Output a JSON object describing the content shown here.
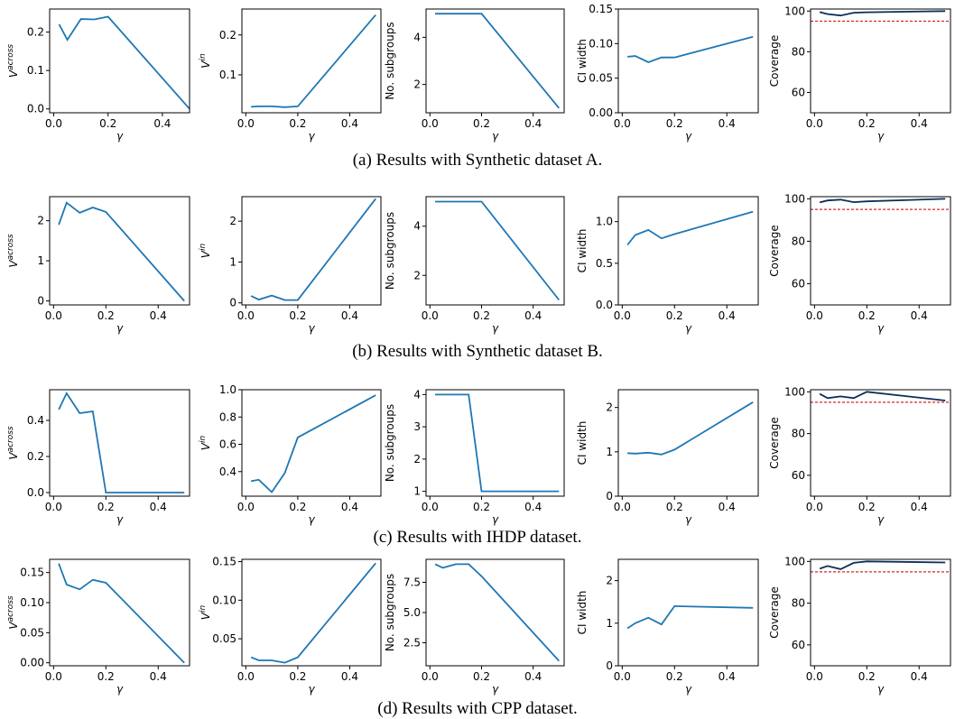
{
  "colors": {
    "series": "#1f77b4",
    "coverage_line": "#0c2e59",
    "reference": "#d62728"
  },
  "captions": [
    "(a) Results with Synthetic dataset A.",
    "(b) Results with Synthetic dataset B.",
    "(c) Results with IHDP dataset.",
    "(d) Results with CPP dataset."
  ],
  "chart_data": [
    {
      "type": "line",
      "row": 0,
      "col": 0,
      "xlabel": "γ",
      "ylabel": "V^across",
      "xlim": [
        -0.015,
        0.5
      ],
      "ylim": [
        -0.01,
        0.26
      ],
      "xticks": [
        0.0,
        0.2,
        0.4
      ],
      "xticklabels": [
        "0.0",
        "0.2",
        "0.4"
      ],
      "yticks": [
        0.0,
        0.1,
        0.2
      ],
      "yticklabels": [
        "0.0",
        "0.1",
        "0.2"
      ],
      "x": [
        0.02,
        0.05,
        0.1,
        0.15,
        0.2,
        0.5
      ],
      "y": [
        0.22,
        0.18,
        0.234,
        0.233,
        0.24,
        0.0
      ]
    },
    {
      "type": "line",
      "row": 0,
      "col": 1,
      "xlabel": "γ",
      "ylabel": "V^in",
      "xlim": [
        -0.015,
        0.52
      ],
      "ylim": [
        0.005,
        0.265
      ],
      "xticks": [
        0.0,
        0.2,
        0.4
      ],
      "xticklabels": [
        "0.0",
        "0.2",
        "0.4"
      ],
      "yticks": [
        0.1,
        0.2
      ],
      "yticklabels": [
        "0.1",
        "0.2"
      ],
      "x": [
        0.02,
        0.05,
        0.1,
        0.15,
        0.2,
        0.5
      ],
      "y": [
        0.02,
        0.021,
        0.021,
        0.019,
        0.021,
        0.25
      ]
    },
    {
      "type": "line",
      "row": 0,
      "col": 2,
      "xlabel": "γ",
      "ylabel": "No. subgroups",
      "xlim": [
        -0.015,
        0.52
      ],
      "ylim": [
        0.8,
        5.2
      ],
      "xticks": [
        0.0,
        0.2,
        0.4
      ],
      "xticklabels": [
        "0.0",
        "0.2",
        "0.4"
      ],
      "yticks": [
        2,
        4
      ],
      "yticklabels": [
        "2",
        "4"
      ],
      "x": [
        0.02,
        0.05,
        0.1,
        0.15,
        0.2,
        0.5
      ],
      "y": [
        5,
        5,
        5,
        5,
        5,
        1
      ]
    },
    {
      "type": "line",
      "row": 0,
      "col": 3,
      "xlabel": "γ",
      "ylabel": "CI width",
      "xlim": [
        -0.015,
        0.52
      ],
      "ylim": [
        0.0,
        0.15
      ],
      "xticks": [
        0.0,
        0.2,
        0.4
      ],
      "xticklabels": [
        "0.0",
        "0.2",
        "0.4"
      ],
      "yticks": [
        0.0,
        0.05,
        0.1,
        0.15
      ],
      "yticklabels": [
        "0.00",
        "0.05",
        "0.10",
        "0.15"
      ],
      "x": [
        0.02,
        0.05,
        0.1,
        0.15,
        0.2,
        0.5
      ],
      "y": [
        0.081,
        0.082,
        0.073,
        0.08,
        0.08,
        0.11
      ]
    },
    {
      "type": "line",
      "row": 0,
      "col": 4,
      "xlabel": "γ",
      "ylabel": "Coverage",
      "xlim": [
        -0.015,
        0.52
      ],
      "ylim": [
        50,
        101
      ],
      "xticks": [
        0.0,
        0.2,
        0.4
      ],
      "xticklabels": [
        "0.0",
        "0.2",
        "0.4"
      ],
      "yticks": [
        60,
        80,
        100
      ],
      "yticklabels": [
        "60",
        "80",
        "100"
      ],
      "hline": 95,
      "x": [
        0.02,
        0.05,
        0.1,
        0.15,
        0.2,
        0.5
      ],
      "y": [
        99.5,
        98.5,
        97.8,
        99.2,
        99.4,
        100
      ]
    },
    {
      "type": "line",
      "row": 1,
      "col": 0,
      "xlabel": "γ",
      "ylabel": "V^across",
      "xlim": [
        -0.015,
        0.52
      ],
      "ylim": [
        -0.1,
        2.6
      ],
      "xticks": [
        0.0,
        0.2,
        0.4
      ],
      "xticklabels": [
        "0.0",
        "0.2",
        "0.4"
      ],
      "yticks": [
        0,
        1,
        2
      ],
      "yticklabels": [
        "0",
        "1",
        "2"
      ],
      "x": [
        0.02,
        0.05,
        0.1,
        0.15,
        0.2,
        0.5
      ],
      "y": [
        1.9,
        2.45,
        2.2,
        2.33,
        2.22,
        0.0
      ]
    },
    {
      "type": "line",
      "row": 1,
      "col": 1,
      "xlabel": "γ",
      "ylabel": "V^in",
      "xlim": [
        -0.015,
        0.52
      ],
      "ylim": [
        -0.05,
        2.6
      ],
      "xticks": [
        0.0,
        0.2,
        0.4
      ],
      "xticklabels": [
        "0.0",
        "0.2",
        "0.4"
      ],
      "yticks": [
        0,
        1,
        2
      ],
      "yticklabels": [
        "0",
        "1",
        "2"
      ],
      "x": [
        0.02,
        0.05,
        0.1,
        0.15,
        0.2,
        0.5
      ],
      "y": [
        0.17,
        0.08,
        0.18,
        0.07,
        0.07,
        2.55
      ]
    },
    {
      "type": "line",
      "row": 1,
      "col": 2,
      "xlabel": "γ",
      "ylabel": "No. subgroups",
      "xlim": [
        -0.015,
        0.52
      ],
      "ylim": [
        0.8,
        5.2
      ],
      "xticks": [
        0.0,
        0.2,
        0.4
      ],
      "xticklabels": [
        "0.0",
        "0.2",
        "0.4"
      ],
      "yticks": [
        2,
        4
      ],
      "yticklabels": [
        "2",
        "4"
      ],
      "x": [
        0.02,
        0.05,
        0.1,
        0.15,
        0.2,
        0.5
      ],
      "y": [
        5,
        5,
        5,
        5,
        5,
        1
      ]
    },
    {
      "type": "line",
      "row": 1,
      "col": 3,
      "xlabel": "γ",
      "ylabel": "CI width",
      "xlim": [
        -0.015,
        0.52
      ],
      "ylim": [
        0.0,
        1.3
      ],
      "xticks": [
        0.0,
        0.2,
        0.4
      ],
      "xticklabels": [
        "0.0",
        "0.2",
        "0.4"
      ],
      "yticks": [
        0.0,
        0.5,
        1.0
      ],
      "yticklabels": [
        "0.0",
        "0.5",
        "1.0"
      ],
      "x": [
        0.02,
        0.05,
        0.1,
        0.15,
        0.2,
        0.5
      ],
      "y": [
        0.72,
        0.84,
        0.9,
        0.8,
        0.85,
        1.12
      ]
    },
    {
      "type": "line",
      "row": 1,
      "col": 4,
      "xlabel": "γ",
      "ylabel": "Coverage",
      "xlim": [
        -0.015,
        0.52
      ],
      "ylim": [
        50,
        101
      ],
      "xticks": [
        0.0,
        0.2,
        0.4
      ],
      "xticklabels": [
        "0.0",
        "0.2",
        "0.4"
      ],
      "yticks": [
        60,
        80,
        100
      ],
      "yticklabels": [
        "60",
        "80",
        "100"
      ],
      "hline": 95,
      "x": [
        0.02,
        0.05,
        0.1,
        0.15,
        0.2,
        0.5
      ],
      "y": [
        98.3,
        99.2,
        99.6,
        98.4,
        98.8,
        100
      ]
    },
    {
      "type": "line",
      "row": 2,
      "col": 0,
      "xlabel": "γ",
      "ylabel": "V^across",
      "xlim": [
        -0.015,
        0.52
      ],
      "ylim": [
        -0.02,
        0.57
      ],
      "xticks": [
        0.0,
        0.2,
        0.4
      ],
      "xticklabels": [
        "0.0",
        "0.2",
        "0.4"
      ],
      "yticks": [
        0.0,
        0.2,
        0.4
      ],
      "yticklabels": [
        "0.0",
        "0.2",
        "0.4"
      ],
      "x": [
        0.02,
        0.05,
        0.1,
        0.15,
        0.2,
        0.5
      ],
      "y": [
        0.46,
        0.55,
        0.44,
        0.45,
        0.0,
        0.0
      ]
    },
    {
      "type": "line",
      "row": 2,
      "col": 1,
      "xlabel": "γ",
      "ylabel": "V^in",
      "xlim": [
        -0.015,
        0.52
      ],
      "ylim": [
        0.22,
        1.0
      ],
      "xticks": [
        0.0,
        0.2,
        0.4
      ],
      "xticklabels": [
        "0.0",
        "0.2",
        "0.4"
      ],
      "yticks": [
        0.4,
        0.6,
        0.8,
        1.0
      ],
      "yticklabels": [
        "0.4",
        "0.6",
        "0.8",
        "1.0"
      ],
      "x": [
        0.02,
        0.05,
        0.1,
        0.15,
        0.2,
        0.5
      ],
      "y": [
        0.33,
        0.34,
        0.25,
        0.39,
        0.65,
        0.96
      ]
    },
    {
      "type": "line",
      "row": 2,
      "col": 2,
      "xlabel": "γ",
      "ylabel": "No. subgroups",
      "xlim": [
        -0.015,
        0.52
      ],
      "ylim": [
        0.85,
        4.15
      ],
      "xticks": [
        0.0,
        0.2,
        0.4
      ],
      "xticklabels": [
        "0.0",
        "0.2",
        "0.4"
      ],
      "yticks": [
        1,
        2,
        3,
        4
      ],
      "yticklabels": [
        "1",
        "2",
        "3",
        "4"
      ],
      "x": [
        0.02,
        0.05,
        0.1,
        0.15,
        0.2,
        0.5
      ],
      "y": [
        4,
        4,
        4,
        4,
        1,
        1
      ]
    },
    {
      "type": "line",
      "row": 2,
      "col": 3,
      "xlabel": "γ",
      "ylabel": "CI width",
      "xlim": [
        -0.015,
        0.52
      ],
      "ylim": [
        0.0,
        2.4
      ],
      "xticks": [
        0.0,
        0.2,
        0.4
      ],
      "xticklabels": [
        "0.0",
        "0.2",
        "0.4"
      ],
      "yticks": [
        0,
        1,
        2
      ],
      "yticklabels": [
        "0",
        "1",
        "2"
      ],
      "x": [
        0.02,
        0.05,
        0.1,
        0.15,
        0.2,
        0.5
      ],
      "y": [
        0.97,
        0.96,
        0.98,
        0.94,
        1.05,
        2.12
      ]
    },
    {
      "type": "line",
      "row": 2,
      "col": 4,
      "xlabel": "γ",
      "ylabel": "Coverage",
      "xlim": [
        -0.015,
        0.52
      ],
      "ylim": [
        50,
        101
      ],
      "xticks": [
        0.0,
        0.2,
        0.4
      ],
      "xticklabels": [
        "0.0",
        "0.2",
        "0.4"
      ],
      "yticks": [
        60,
        80,
        100
      ],
      "yticklabels": [
        "60",
        "80",
        "100"
      ],
      "hline": 95,
      "x": [
        0.02,
        0.05,
        0.1,
        0.15,
        0.2,
        0.5
      ],
      "y": [
        99.0,
        97.0,
        97.8,
        97.0,
        100,
        95.8
      ]
    },
    {
      "type": "line",
      "row": 3,
      "col": 0,
      "xlabel": "γ",
      "ylabel": "V^across",
      "xlim": [
        -0.015,
        0.52
      ],
      "ylim": [
        -0.005,
        0.172
      ],
      "xticks": [
        0.0,
        0.2,
        0.4
      ],
      "xticklabels": [
        "0.0",
        "0.2",
        "0.4"
      ],
      "yticks": [
        0.0,
        0.05,
        0.1,
        0.15
      ],
      "yticklabels": [
        "0.00",
        "0.05",
        "0.10",
        "0.15"
      ],
      "x": [
        0.02,
        0.05,
        0.1,
        0.15,
        0.2,
        0.5
      ],
      "y": [
        0.165,
        0.13,
        0.122,
        0.138,
        0.133,
        0.0
      ]
    },
    {
      "type": "line",
      "row": 3,
      "col": 1,
      "xlabel": "γ",
      "ylabel": "V^in",
      "xlim": [
        -0.015,
        0.52
      ],
      "ylim": [
        0.015,
        0.153
      ],
      "xticks": [
        0.0,
        0.2,
        0.4
      ],
      "xticklabels": [
        "0.0",
        "0.2",
        "0.4"
      ],
      "yticks": [
        0.05,
        0.1,
        0.15
      ],
      "yticklabels": [
        "0.05",
        "0.10",
        "0.15"
      ],
      "x": [
        0.02,
        0.05,
        0.1,
        0.15,
        0.2,
        0.5
      ],
      "y": [
        0.026,
        0.022,
        0.022,
        0.019,
        0.026,
        0.148
      ]
    },
    {
      "type": "line",
      "row": 3,
      "col": 2,
      "xlabel": "γ",
      "ylabel": "No. subgroups",
      "xlim": [
        -0.015,
        0.52
      ],
      "ylim": [
        0.6,
        9.4
      ],
      "xticks": [
        0.0,
        0.2,
        0.4
      ],
      "xticklabels": [
        "0.0",
        "0.2",
        "0.4"
      ],
      "yticks": [
        2.5,
        5.0,
        7.5
      ],
      "yticklabels": [
        "2.5",
        "5.0",
        "7.5"
      ],
      "x": [
        0.02,
        0.05,
        0.1,
        0.15,
        0.2,
        0.5
      ],
      "y": [
        9,
        8.7,
        9,
        9,
        8,
        1
      ]
    },
    {
      "type": "line",
      "row": 3,
      "col": 3,
      "xlabel": "γ",
      "ylabel": "CI width",
      "xlim": [
        -0.015,
        0.52
      ],
      "ylim": [
        0.0,
        2.5
      ],
      "xticks": [
        0.0,
        0.2,
        0.4
      ],
      "xticklabels": [
        "0.0",
        "0.2",
        "0.4"
      ],
      "yticks": [
        0,
        1,
        2
      ],
      "yticklabels": [
        "0",
        "1",
        "2"
      ],
      "x": [
        0.02,
        0.05,
        0.1,
        0.15,
        0.2,
        0.5
      ],
      "y": [
        0.88,
        1.0,
        1.13,
        0.97,
        1.4,
        1.36
      ]
    },
    {
      "type": "line",
      "row": 3,
      "col": 4,
      "xlabel": "γ",
      "ylabel": "Coverage",
      "xlim": [
        -0.015,
        0.52
      ],
      "ylim": [
        50,
        101
      ],
      "xticks": [
        0.0,
        0.2,
        0.4
      ],
      "xticklabels": [
        "0.0",
        "0.2",
        "0.4"
      ],
      "yticks": [
        60,
        80,
        100
      ],
      "yticklabels": [
        "60",
        "80",
        "100"
      ],
      "hline": 95,
      "x": [
        0.02,
        0.05,
        0.1,
        0.15,
        0.2,
        0.5
      ],
      "y": [
        96.5,
        97.8,
        96.3,
        99.3,
        100,
        99.5
      ]
    }
  ]
}
